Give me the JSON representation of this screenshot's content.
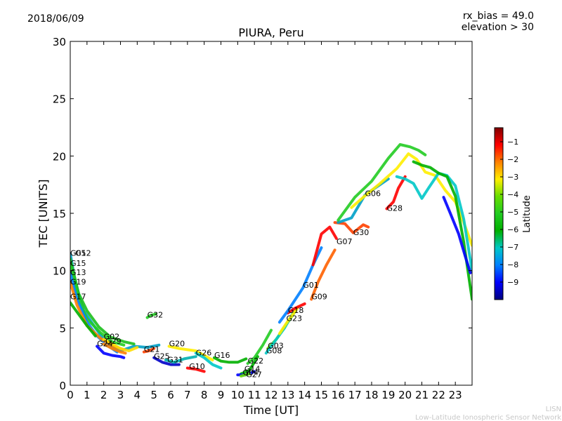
{
  "header": {
    "date": "2018/06/09",
    "rx_bias": "rx_bias = 49.0",
    "elevation": "elevation > 30"
  },
  "footer": {
    "line1": "LISN",
    "line2": "Low-Latitude Ionospheric Sensor Network"
  },
  "colorbar": {
    "label": "Latitude",
    "ticks": [
      "-1",
      "-2",
      "-3",
      "-4",
      "-5",
      "-6",
      "-7",
      "-8",
      "-9"
    ],
    "range": [
      -10,
      -0.2
    ],
    "colors": [
      "#00007f",
      "#0000ff",
      "#0080ff",
      "#00c8c8",
      "#00b000",
      "#22cc22",
      "#66dd00",
      "#ffee00",
      "#ff8000",
      "#ff0000",
      "#7f0000"
    ]
  },
  "chart_data": {
    "type": "scatter",
    "title": "PIURA, Peru",
    "xlabel": "Time [UT]",
    "ylabel": "TEC [UNITS]",
    "xlim": [
      0,
      24
    ],
    "ylim": [
      0,
      30
    ],
    "xticks": [
      "0",
      "1",
      "2",
      "3",
      "4",
      "5",
      "6",
      "7",
      "8",
      "9",
      "10",
      "11",
      "12",
      "13",
      "14",
      "15",
      "16",
      "17",
      "18",
      "19",
      "20",
      "21",
      "22",
      "23"
    ],
    "yticks": [
      "0",
      "5",
      "10",
      "15",
      "20",
      "25",
      "30"
    ],
    "grid": false,
    "series": [
      {
        "label": "G05",
        "label_at": [
          0.0,
          11.3
        ],
        "color": "#00a0c8",
        "points": [
          [
            0,
            11.5
          ],
          [
            0.3,
            9
          ],
          [
            0.8,
            6.5
          ],
          [
            1.5,
            5
          ],
          [
            2.2,
            3.6
          ],
          [
            3,
            3.0
          ],
          [
            3.8,
            3.4
          ],
          [
            4.6,
            3.3
          ],
          [
            5.3,
            3.5
          ]
        ]
      },
      {
        "label": "G12",
        "label_at": [
          0.3,
          11.3
        ],
        "color": "#1cbf1c",
        "points": [
          [
            0,
            11
          ],
          [
            0.5,
            8
          ],
          [
            1,
            6.5
          ],
          [
            1.7,
            5.1
          ],
          [
            2.4,
            4.2
          ],
          [
            3.2,
            3.8
          ],
          [
            3.8,
            3.6
          ]
        ]
      },
      {
        "label": "G15",
        "label_at": [
          0.0,
          10.4
        ],
        "color": "#22cc22",
        "points": [
          [
            0,
            10.5
          ],
          [
            0.5,
            7.5
          ],
          [
            1,
            5.8
          ],
          [
            1.8,
            4.6
          ],
          [
            2.5,
            3.8
          ],
          [
            3.2,
            3.5
          ]
        ]
      },
      {
        "label": "G13",
        "label_at": [
          0.0,
          9.6
        ],
        "color": "#0080ff",
        "points": [
          [
            0,
            9.8
          ],
          [
            0.4,
            7.5
          ],
          [
            1,
            5.5
          ],
          [
            1.6,
            4.3
          ],
          [
            2.3,
            3.4
          ],
          [
            2.8,
            2.9
          ]
        ]
      },
      {
        "label": "G19",
        "label_at": [
          0.0,
          8.8
        ],
        "color": "#ff8000",
        "points": [
          [
            0,
            9
          ],
          [
            0.4,
            7
          ],
          [
            1,
            5.2
          ],
          [
            1.8,
            4.1
          ],
          [
            2.6,
            3.4
          ],
          [
            3.2,
            3.1
          ]
        ]
      },
      {
        "label": "G17",
        "label_at": [
          0.0,
          7.5
        ],
        "color": "#00b000",
        "points": [
          [
            0,
            7.2
          ],
          [
            0.4,
            6.4
          ],
          [
            1,
            5.2
          ],
          [
            1.5,
            4.3
          ]
        ]
      },
      {
        "label": "G32",
        "label_at": [
          4.6,
          5.9
        ],
        "color": "#22cc22",
        "points": [
          [
            4.6,
            5.9
          ],
          [
            4.8,
            6.1
          ],
          [
            5.1,
            6.2
          ]
        ]
      },
      {
        "label": "G02",
        "label_at": [
          2.0,
          4.0
        ],
        "color": "#ffdd00",
        "points": [
          [
            2,
            4.0
          ],
          [
            2.5,
            3.6
          ],
          [
            3,
            3.2
          ],
          [
            3.5,
            3.0
          ],
          [
            4,
            3.3
          ]
        ]
      },
      {
        "label": "G29",
        "label_at": [
          2.1,
          3.6
        ],
        "color": "#ff8000",
        "points": [
          [
            2,
            3.6
          ],
          [
            2.5,
            3.2
          ],
          [
            3,
            2.9
          ],
          [
            3.3,
            2.8
          ]
        ]
      },
      {
        "label": "G24",
        "label_at": [
          1.6,
          3.4
        ],
        "color": "#0000ff",
        "points": [
          [
            1.6,
            3.4
          ],
          [
            2,
            2.8
          ],
          [
            2.5,
            2.6
          ],
          [
            3,
            2.5
          ],
          [
            3.2,
            2.4
          ]
        ]
      },
      {
        "label": "G21",
        "label_at": [
          4.4,
          2.9
        ],
        "color": "#ff4000",
        "points": [
          [
            4.4,
            2.9
          ],
          [
            4.7,
            3.0
          ],
          [
            5,
            3.2
          ]
        ]
      },
      {
        "label": "G25",
        "label_at": [
          5.0,
          2.3
        ],
        "color": "#0000c8",
        "points": [
          [
            5,
            2.4
          ],
          [
            5.5,
            2.0
          ],
          [
            6,
            1.8
          ],
          [
            6.5,
            1.8
          ]
        ]
      },
      {
        "label": "G31",
        "label_at": [
          5.8,
          2.0
        ],
        "color": "#00b0b0",
        "points": [
          [
            5.7,
            2.2
          ],
          [
            6.2,
            2.0
          ],
          [
            6.8,
            2.3
          ],
          [
            7.5,
            2.5
          ]
        ]
      },
      {
        "label": "G20",
        "label_at": [
          5.9,
          3.4
        ],
        "color": "#ffee00",
        "points": [
          [
            5.9,
            3.4
          ],
          [
            6.5,
            3.2
          ],
          [
            7,
            3.1
          ],
          [
            7.5,
            3.0
          ],
          [
            8,
            2.6
          ],
          [
            8.5,
            2.2
          ]
        ]
      },
      {
        "label": "G10",
        "label_at": [
          7.1,
          1.4
        ],
        "color": "#ff0000",
        "points": [
          [
            7,
            1.5
          ],
          [
            7.5,
            1.4
          ],
          [
            8,
            1.2
          ]
        ]
      },
      {
        "label": "G26",
        "label_at": [
          7.5,
          2.6
        ],
        "color": "#00c8c8",
        "points": [
          [
            7.5,
            2.8
          ],
          [
            8,
            2.4
          ],
          [
            8.5,
            1.8
          ],
          [
            9,
            1.5
          ]
        ]
      },
      {
        "label": "G16",
        "label_at": [
          8.6,
          2.4
        ],
        "color": "#00b000",
        "points": [
          [
            8.6,
            2.4
          ],
          [
            9,
            2.1
          ],
          [
            9.5,
            2.0
          ],
          [
            10,
            2.0
          ],
          [
            10.5,
            2.3
          ]
        ]
      },
      {
        "label": "G22",
        "label_at": [
          10.6,
          1.9
        ],
        "color": "#22cc22",
        "points": [
          [
            10.6,
            1.9
          ],
          [
            11,
            2.4
          ],
          [
            11.5,
            3.5
          ],
          [
            12,
            4.8
          ]
        ]
      },
      {
        "label": "G14",
        "label_at": [
          10.4,
          1.2
        ],
        "color": "#00b000",
        "points": [
          [
            10.2,
            1.0
          ],
          [
            10.7,
            1.3
          ],
          [
            11.2,
            2.5
          ]
        ]
      },
      {
        "label": "G04",
        "label_at": [
          10.3,
          0.9
        ],
        "color": "#0000ff",
        "points": [
          [
            10,
            0.9
          ],
          [
            10.5,
            0.9
          ],
          [
            11,
            1.2
          ]
        ]
      },
      {
        "label": "G27",
        "label_at": [
          10.5,
          0.7
        ],
        "color": "#66dd00",
        "points": [
          [
            10.2,
            0.8
          ],
          [
            10.7,
            1.0
          ]
        ]
      },
      {
        "label": "G03",
        "label_at": [
          11.8,
          3.2
        ],
        "color": "#66dd00",
        "points": [
          [
            11.8,
            3.2
          ],
          [
            12.3,
            4.0
          ],
          [
            13,
            5.5
          ],
          [
            13.5,
            6.6
          ]
        ]
      },
      {
        "label": "G08",
        "label_at": [
          11.7,
          2.8
        ],
        "color": "#00c8c8",
        "points": [
          [
            11.7,
            2.8
          ],
          [
            12.2,
            3.8
          ],
          [
            12.8,
            5.0
          ],
          [
            13.3,
            6.3
          ]
        ]
      },
      {
        "label": "G23",
        "label_at": [
          12.9,
          5.6
        ],
        "color": "#ffee00",
        "points": [
          [
            12.5,
            4.5
          ],
          [
            13,
            5.6
          ],
          [
            13.6,
            6.8
          ]
        ]
      },
      {
        "label": "G18",
        "label_at": [
          13.0,
          6.3
        ],
        "color": "#ff0000",
        "points": [
          [
            13,
            6.3
          ],
          [
            13.4,
            6.7
          ],
          [
            14,
            7.1
          ]
        ]
      },
      {
        "label": "G01",
        "label_at": [
          13.9,
          8.5
        ],
        "color": "#0080ff",
        "points": [
          [
            12.5,
            5.5
          ],
          [
            13,
            6.5
          ],
          [
            13.9,
            8.5
          ],
          [
            14.5,
            10.5
          ],
          [
            15,
            12.0
          ]
        ]
      },
      {
        "label": "G09",
        "label_at": [
          14.4,
          7.5
        ],
        "color": "#ff6000",
        "points": [
          [
            14.4,
            7.5
          ],
          [
            14.8,
            9.0
          ],
          [
            15.3,
            10.5
          ],
          [
            15.8,
            11.8
          ]
        ]
      },
      {
        "label": "G07",
        "label_at": [
          15.9,
          12.3
        ],
        "color": "#ff0000",
        "points": [
          [
            14.5,
            10.5
          ],
          [
            15,
            13.2
          ],
          [
            15.5,
            13.8
          ],
          [
            15.9,
            12.8
          ]
        ]
      },
      {
        "label": "G30",
        "label_at": [
          16.9,
          13.1
        ],
        "color": "#ff4000",
        "points": [
          [
            15.8,
            14.2
          ],
          [
            16.4,
            14.1
          ],
          [
            16.9,
            13.3
          ],
          [
            17.5,
            14.0
          ],
          [
            17.8,
            13.8
          ]
        ]
      },
      {
        "label": "G06",
        "label_at": [
          17.6,
          16.5
        ],
        "color": "#00a0c8",
        "points": [
          [
            16,
            14.2
          ],
          [
            16.8,
            14.6
          ],
          [
            17.6,
            16.6
          ],
          [
            18.5,
            17.5
          ],
          [
            19,
            18.0
          ]
        ]
      },
      {
        "label": "G28",
        "label_at": [
          18.9,
          15.2
        ],
        "color": "#ff0000",
        "points": [
          [
            18.9,
            15.4
          ],
          [
            19.3,
            16.0
          ],
          [
            19.6,
            17.2
          ],
          [
            20,
            18.2
          ]
        ]
      },
      {
        "label": "",
        "label_at": [
          0,
          0
        ],
        "color": "#22cc22",
        "points": [
          [
            16,
            14.4
          ],
          [
            17,
            16.4
          ],
          [
            18,
            17.8
          ],
          [
            19,
            19.8
          ],
          [
            19.7,
            21.0
          ],
          [
            20.3,
            20.8
          ],
          [
            20.8,
            20.5
          ],
          [
            21.2,
            20.1
          ]
        ]
      },
      {
        "label": "",
        "label_at": [
          0,
          0
        ],
        "color": "#ffee00",
        "points": [
          [
            16.8,
            15.5
          ],
          [
            17.5,
            16.4
          ],
          [
            18.5,
            17.6
          ],
          [
            19.5,
            18.9
          ],
          [
            20.2,
            20.2
          ],
          [
            20.7,
            19.7
          ],
          [
            21.2,
            18.6
          ],
          [
            21.8,
            18.3
          ],
          [
            22.4,
            17.0
          ],
          [
            23,
            16.0
          ],
          [
            23.5,
            14.2
          ],
          [
            24,
            12.2
          ]
        ]
      },
      {
        "label": "",
        "label_at": [
          0,
          0
        ],
        "color": "#00c8c8",
        "points": [
          [
            19.5,
            18.2
          ],
          [
            20,
            18.0
          ],
          [
            20.5,
            17.6
          ],
          [
            21,
            16.3
          ],
          [
            21.4,
            17.2
          ],
          [
            22,
            18.5
          ],
          [
            22.5,
            18.3
          ],
          [
            23,
            17.4
          ],
          [
            23.5,
            14.5
          ],
          [
            24,
            10.0
          ]
        ]
      },
      {
        "label": "",
        "label_at": [
          0,
          0
        ],
        "color": "#00b000",
        "points": [
          [
            20.5,
            19.5
          ],
          [
            21,
            19.2
          ],
          [
            21.5,
            19.0
          ],
          [
            22,
            18.5
          ],
          [
            22.5,
            18.2
          ],
          [
            23,
            16.5
          ],
          [
            23.5,
            12.5
          ],
          [
            24,
            7.5
          ]
        ]
      },
      {
        "label": "",
        "label_at": [
          0,
          0
        ],
        "color": "#0000ff",
        "points": [
          [
            22.3,
            16.4
          ],
          [
            22.7,
            15.0
          ],
          [
            23.2,
            13.2
          ],
          [
            23.6,
            11.2
          ],
          [
            23.9,
            9.8
          ]
        ]
      }
    ]
  }
}
